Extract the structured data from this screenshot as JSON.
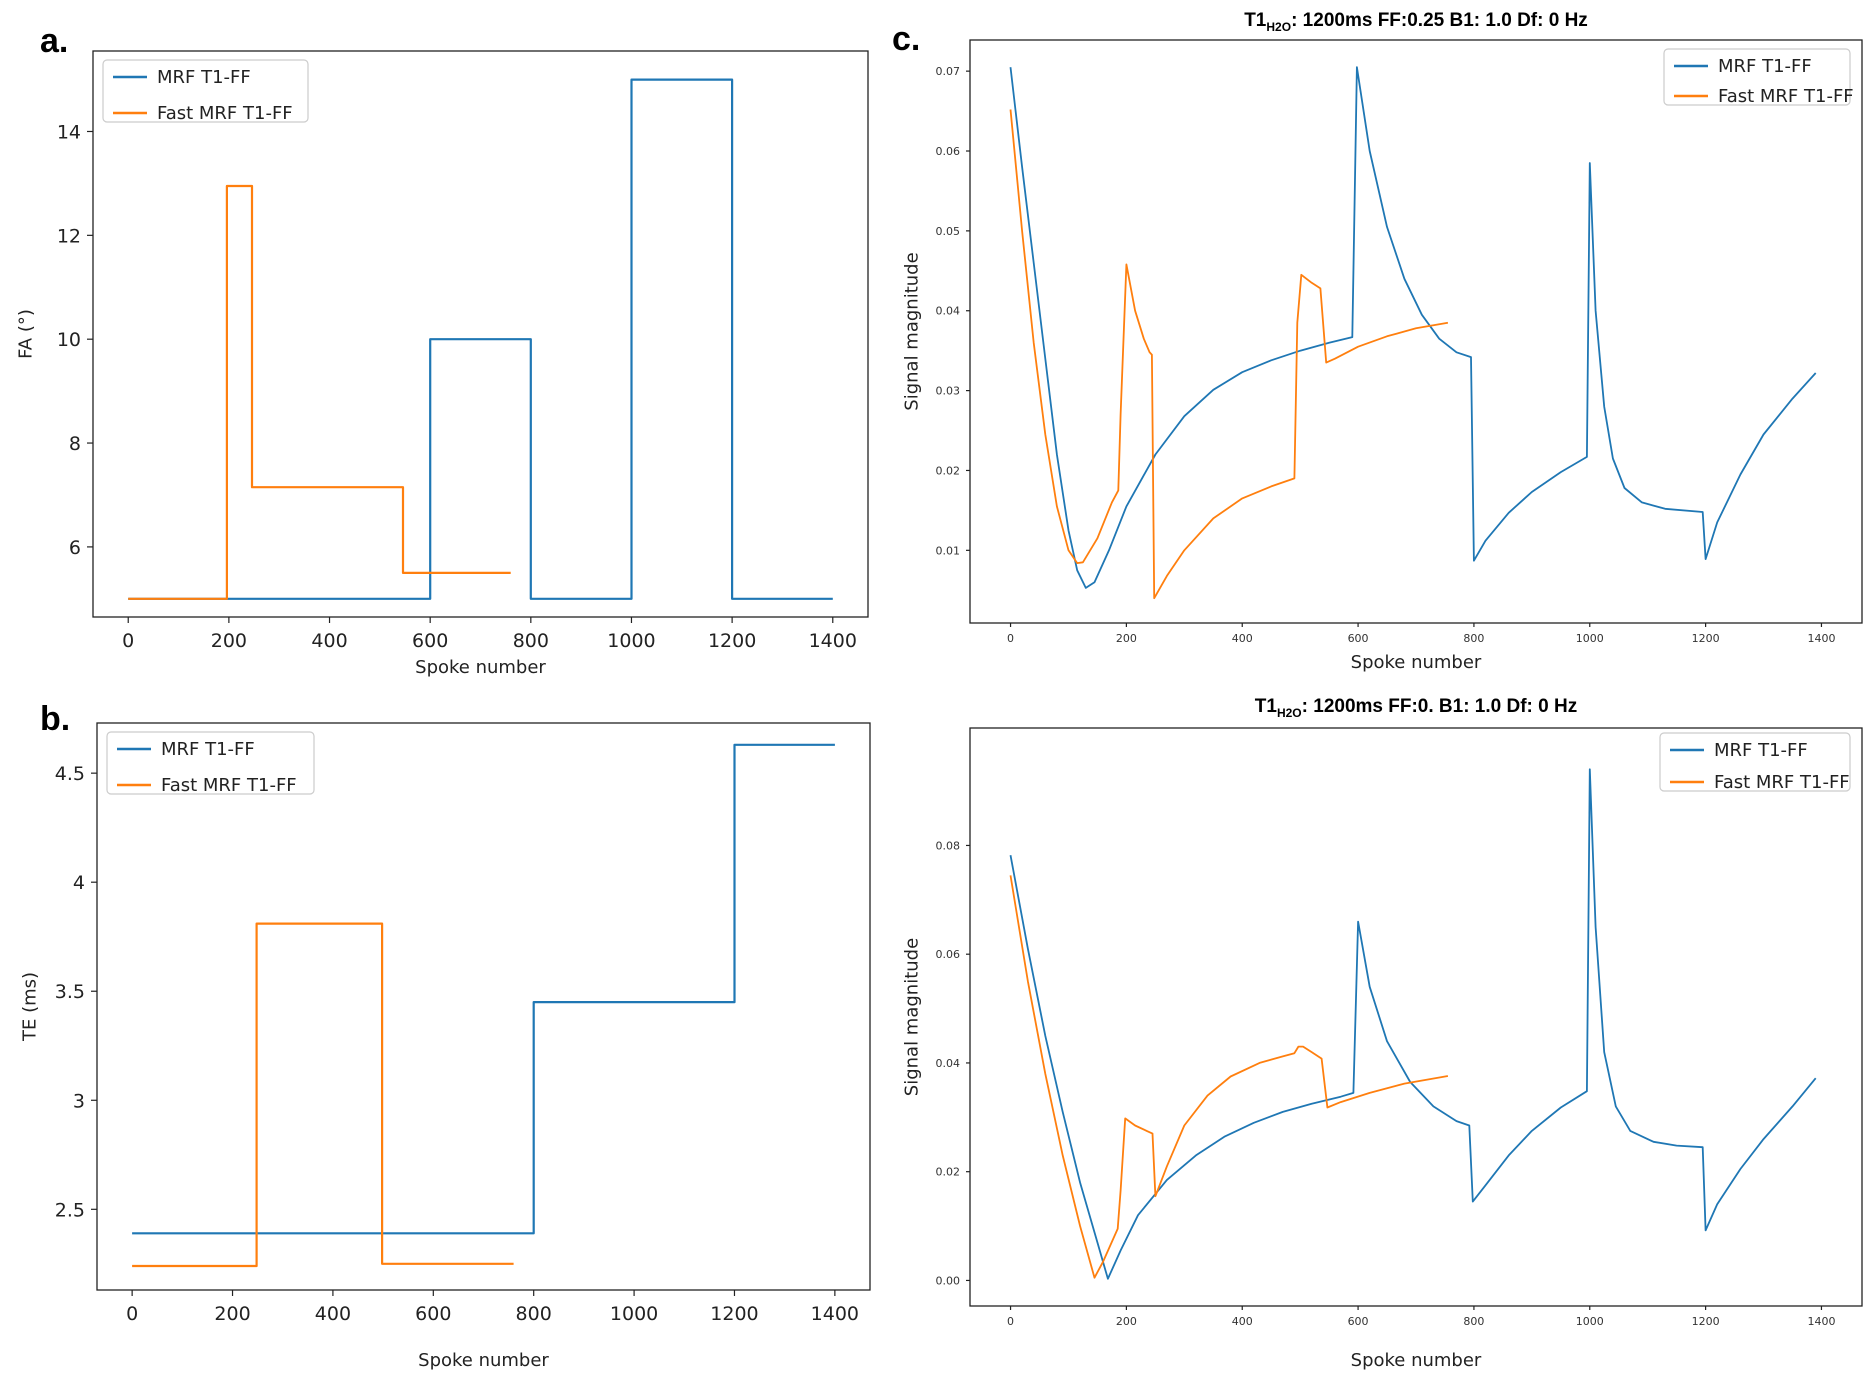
{
  "figure": {
    "panel_a": "a.",
    "panel_b": "b.",
    "panel_c": "c."
  },
  "colors": {
    "mrf": "#1f77b4",
    "fast": "#ff7f0e"
  },
  "chart_data": [
    {
      "id": "a",
      "type": "line",
      "step": true,
      "title": "",
      "xlabel": "Spoke number",
      "ylabel": "FA  (°)",
      "xlim": [
        -70,
        1470
      ],
      "ylim": [
        4.65,
        15.55
      ],
      "xticks": [
        0,
        200,
        400,
        600,
        800,
        1000,
        1200,
        1400
      ],
      "yticks": [
        6,
        8,
        10,
        12,
        14
      ],
      "legend": [
        "MRF T1-FF",
        "Fast MRF T1-FF"
      ],
      "series": [
        {
          "name": "MRF T1-FF",
          "color": "#1f77b4",
          "points": [
            [
              0,
              5
            ],
            [
              600,
              5
            ],
            [
              600,
              10
            ],
            [
              800,
              10
            ],
            [
              800,
              5
            ],
            [
              1000,
              5
            ],
            [
              1000,
              15
            ],
            [
              1200,
              15
            ],
            [
              1200,
              5
            ],
            [
              1400,
              5
            ]
          ]
        },
        {
          "name": "Fast MRF T1-FF",
          "color": "#ff7f0e",
          "points": [
            [
              0,
              5
            ],
            [
              196,
              5
            ],
            [
              196,
              12.95
            ],
            [
              246,
              12.95
            ],
            [
              246,
              7.15
            ],
            [
              546,
              7.15
            ],
            [
              546,
              5.5
            ],
            [
              760,
              5.5
            ]
          ]
        }
      ]
    },
    {
      "id": "b",
      "type": "line",
      "step": true,
      "title": "",
      "xlabel": "Spoke number",
      "ylabel": "TE (ms)",
      "xlim": [
        -70,
        1470
      ],
      "ylim": [
        2.13,
        4.73
      ],
      "xticks": [
        0,
        200,
        400,
        600,
        800,
        1000,
        1200,
        1400
      ],
      "yticks": [
        2.5,
        3.0,
        3.5,
        4.0,
        4.5
      ],
      "legend": [
        "MRF T1-FF",
        "Fast MRF T1-FF"
      ],
      "series": [
        {
          "name": "MRF T1-FF",
          "color": "#1f77b4",
          "points": [
            [
              0,
              2.39
            ],
            [
              800,
              2.39
            ],
            [
              800,
              3.45
            ],
            [
              1200,
              3.45
            ],
            [
              1200,
              4.63
            ],
            [
              1400,
              4.63
            ]
          ]
        },
        {
          "name": "Fast MRF T1-FF",
          "color": "#ff7f0e",
          "points": [
            [
              0,
              2.24
            ],
            [
              248,
              2.24
            ],
            [
              248,
              3.81
            ],
            [
              498,
              3.81
            ],
            [
              498,
              2.25
            ],
            [
              760,
              2.25
            ]
          ]
        }
      ]
    },
    {
      "id": "c-top",
      "type": "line",
      "title": "T1",
      "title_sub": "H2O",
      "title_rest": ": 1200ms   FF:0.25   B1: 1.0   Df: 0 Hz",
      "xlabel": "Spoke number",
      "ylabel": "Signal magnitude",
      "xlim": [
        -70,
        1470
      ],
      "ylim": [
        0.0009,
        0.0739
      ],
      "xticks": [
        0,
        200,
        400,
        600,
        800,
        1000,
        1200,
        1400
      ],
      "yticks": [
        0.01,
        0.02,
        0.03,
        0.04,
        0.05,
        0.06,
        0.07
      ],
      "ytick_labels": [
        "0.01",
        "0.02",
        "0.03",
        "0.04",
        "0.05",
        "0.06",
        "0.07"
      ],
      "legend": [
        "MRF T1-FF",
        "Fast MRF T1-FF"
      ],
      "series": [
        {
          "name": "MRF T1-FF",
          "color": "#1f77b4",
          "points": [
            [
              0,
              0.0705
            ],
            [
              20,
              0.058
            ],
            [
              40,
              0.046
            ],
            [
              60,
              0.034
            ],
            [
              80,
              0.022
            ],
            [
              100,
              0.0125
            ],
            [
              115,
              0.0075
            ],
            [
              130,
              0.0053
            ],
            [
              145,
              0.006
            ],
            [
              170,
              0.01
            ],
            [
              200,
              0.0155
            ],
            [
              250,
              0.022
            ],
            [
              300,
              0.0268
            ],
            [
              350,
              0.0301
            ],
            [
              400,
              0.0323
            ],
            [
              450,
              0.0338
            ],
            [
              500,
              0.035
            ],
            [
              550,
              0.036
            ],
            [
              590,
              0.0367
            ],
            [
              598,
              0.0705
            ],
            [
              620,
              0.06
            ],
            [
              650,
              0.0505
            ],
            [
              680,
              0.044
            ],
            [
              710,
              0.0395
            ],
            [
              740,
              0.0365
            ],
            [
              770,
              0.0348
            ],
            [
              795,
              0.0342
            ],
            [
              800,
              0.0087
            ],
            [
              820,
              0.0112
            ],
            [
              860,
              0.0147
            ],
            [
              900,
              0.0173
            ],
            [
              950,
              0.0198
            ],
            [
              995,
              0.0217
            ],
            [
              1000,
              0.0585
            ],
            [
              1010,
              0.04
            ],
            [
              1025,
              0.028
            ],
            [
              1040,
              0.0215
            ],
            [
              1060,
              0.0178
            ],
            [
              1090,
              0.016
            ],
            [
              1130,
              0.0152
            ],
            [
              1195,
              0.0148
            ],
            [
              1200,
              0.0089
            ],
            [
              1220,
              0.0135
            ],
            [
              1260,
              0.0195
            ],
            [
              1300,
              0.0245
            ],
            [
              1350,
              0.029
            ],
            [
              1390,
              0.0322
            ]
          ]
        },
        {
          "name": "Fast MRF T1-FF",
          "color": "#ff7f0e",
          "points": [
            [
              0,
              0.0652
            ],
            [
              20,
              0.05
            ],
            [
              40,
              0.036
            ],
            [
              60,
              0.0245
            ],
            [
              80,
              0.0155
            ],
            [
              100,
              0.01
            ],
            [
              115,
              0.0084
            ],
            [
              125,
              0.0085
            ],
            [
              150,
              0.0115
            ],
            [
              175,
              0.016
            ],
            [
              186,
              0.0175
            ],
            [
              190,
              0.027
            ],
            [
              200,
              0.0458
            ],
            [
              215,
              0.04
            ],
            [
              230,
              0.0365
            ],
            [
              240,
              0.0348
            ],
            [
              244,
              0.0345
            ],
            [
              248,
              0.004
            ],
            [
              270,
              0.0068
            ],
            [
              300,
              0.01
            ],
            [
              350,
              0.014
            ],
            [
              400,
              0.0165
            ],
            [
              450,
              0.018
            ],
            [
              490,
              0.019
            ],
            [
              495,
              0.0385
            ],
            [
              502,
              0.0445
            ],
            [
              520,
              0.0435
            ],
            [
              535,
              0.0428
            ],
            [
              545,
              0.0335
            ],
            [
              560,
              0.034
            ],
            [
              600,
              0.0355
            ],
            [
              650,
              0.0368
            ],
            [
              700,
              0.0378
            ],
            [
              755,
              0.0385
            ]
          ]
        }
      ]
    },
    {
      "id": "c-bottom",
      "type": "line",
      "title": "T1",
      "title_sub": "H2O",
      "title_rest": ": 1200ms   FF:0.   B1: 1.0   Df: 0 Hz",
      "xlabel": "Spoke number",
      "ylabel": "Signal magnitude",
      "xlim": [
        -70,
        1470
      ],
      "ylim": [
        -0.0047,
        0.1016
      ],
      "xticks": [
        0,
        200,
        400,
        600,
        800,
        1000,
        1200,
        1400
      ],
      "yticks": [
        0.0,
        0.02,
        0.04,
        0.06,
        0.08
      ],
      "ytick_labels": [
        "0.00",
        "0.02",
        "0.04",
        "0.06",
        "0.08"
      ],
      "legend": [
        "MRF T1-FF",
        "Fast MRF T1-FF"
      ],
      "series": [
        {
          "name": "MRF T1-FF",
          "color": "#1f77b4",
          "points": [
            [
              0,
              0.0782
            ],
            [
              30,
              0.061
            ],
            [
              60,
              0.045
            ],
            [
              90,
              0.031
            ],
            [
              120,
              0.018
            ],
            [
              150,
              0.007
            ],
            [
              168,
              0.0003
            ],
            [
              190,
              0.0055
            ],
            [
              220,
              0.012
            ],
            [
              270,
              0.0185
            ],
            [
              320,
              0.023
            ],
            [
              370,
              0.0265
            ],
            [
              420,
              0.029
            ],
            [
              470,
              0.031
            ],
            [
              520,
              0.0325
            ],
            [
              570,
              0.0338
            ],
            [
              592,
              0.0345
            ],
            [
              600,
              0.066
            ],
            [
              620,
              0.054
            ],
            [
              650,
              0.044
            ],
            [
              690,
              0.0365
            ],
            [
              730,
              0.032
            ],
            [
              770,
              0.0293
            ],
            [
              792,
              0.0285
            ],
            [
              798,
              0.0145
            ],
            [
              820,
              0.0175
            ],
            [
              860,
              0.023
            ],
            [
              900,
              0.0275
            ],
            [
              950,
              0.0318
            ],
            [
              995,
              0.0348
            ],
            [
              1000,
              0.094
            ],
            [
              1010,
              0.065
            ],
            [
              1025,
              0.042
            ],
            [
              1045,
              0.032
            ],
            [
              1070,
              0.0275
            ],
            [
              1110,
              0.0255
            ],
            [
              1150,
              0.0248
            ],
            [
              1195,
              0.0245
            ],
            [
              1200,
              0.0092
            ],
            [
              1220,
              0.014
            ],
            [
              1260,
              0.0205
            ],
            [
              1300,
              0.026
            ],
            [
              1350,
              0.032
            ],
            [
              1390,
              0.0372
            ]
          ]
        },
        {
          "name": "Fast MRF T1-FF",
          "color": "#ff7f0e",
          "points": [
            [
              0,
              0.0745
            ],
            [
              30,
              0.055
            ],
            [
              60,
              0.038
            ],
            [
              90,
              0.023
            ],
            [
              120,
              0.01
            ],
            [
              145,
              0.0005
            ],
            [
              160,
              0.0035
            ],
            [
              185,
              0.0095
            ],
            [
              190,
              0.0165
            ],
            [
              198,
              0.0298
            ],
            [
              215,
              0.0285
            ],
            [
              235,
              0.0275
            ],
            [
              245,
              0.027
            ],
            [
              250,
              0.0155
            ],
            [
              270,
              0.021
            ],
            [
              300,
              0.0285
            ],
            [
              340,
              0.034
            ],
            [
              380,
              0.0375
            ],
            [
              430,
              0.04
            ],
            [
              470,
              0.0412
            ],
            [
              490,
              0.0418
            ],
            [
              497,
              0.043
            ],
            [
              505,
              0.043
            ],
            [
              520,
              0.042
            ],
            [
              537,
              0.0408
            ],
            [
              547,
              0.0318
            ],
            [
              570,
              0.0328
            ],
            [
              620,
              0.0345
            ],
            [
              680,
              0.0362
            ],
            [
              755,
              0.0376
            ]
          ]
        }
      ]
    }
  ]
}
